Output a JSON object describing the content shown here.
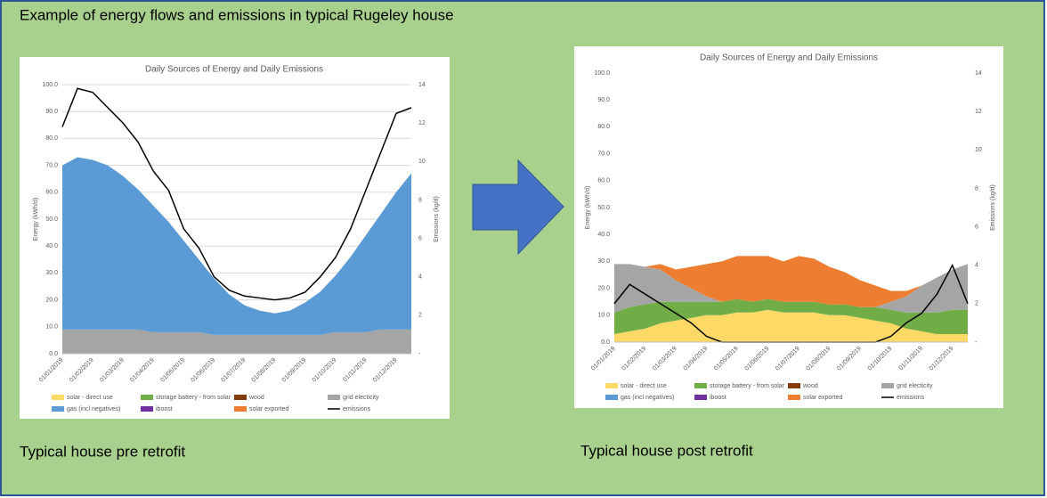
{
  "slide": {
    "title": "Example of energy flows and emissions in typical Rugeley house",
    "captions": [
      "Typical house pre retrofit",
      "Typical house post retrofit"
    ]
  },
  "chart_data": [
    {
      "type": "area",
      "title": "Daily Sources of Energy and Daily Emissions",
      "y_label": "Energy (kWh/d)",
      "y2_label": "Emissions (kg/d)",
      "x": [
        "01/01/2019",
        null,
        "01/02/2019",
        null,
        "01/03/2019",
        null,
        "01/04/2019",
        null,
        "01/05/2019",
        null,
        "01/06/2019",
        null,
        "01/07/2019",
        null,
        "01/08/2019",
        null,
        "01/09/2019",
        null,
        "01/10/2019",
        null,
        "01/11/2019",
        null,
        "01/12/2019",
        null
      ],
      "ylim": [
        0,
        100
      ],
      "yticks": [
        {
          "value": 0,
          "label": "0.0"
        },
        {
          "value": 10,
          "label": "10.0"
        },
        {
          "value": 20,
          "label": "20.0"
        },
        {
          "value": 30,
          "label": "30.0"
        },
        {
          "value": 40,
          "label": "40.0"
        },
        {
          "value": 50,
          "label": "50.0"
        },
        {
          "value": 60,
          "label": "60.0"
        },
        {
          "value": 70,
          "label": "70.0"
        },
        {
          "value": 80,
          "label": "80.0"
        },
        {
          "value": 90,
          "label": "90.0"
        },
        {
          "value": 100,
          "label": "100.0"
        }
      ],
      "y2lim": [
        0,
        14
      ],
      "y2ticks": [
        {
          "value": 0,
          "label": "-"
        },
        2,
        4,
        6,
        8,
        10,
        12,
        14
      ],
      "grid": true,
      "series": [
        {
          "name": "solar - direct use",
          "color": "#ffd966",
          "values": [
            0,
            0,
            0,
            0,
            0,
            0,
            0,
            0,
            0,
            0,
            0,
            0,
            0,
            0,
            0,
            0,
            0,
            0,
            0,
            0,
            0,
            0,
            0,
            0
          ]
        },
        {
          "name": "storage battery - from solar",
          "color": "#70ad47",
          "values": [
            0,
            0,
            0,
            0,
            0,
            0,
            0,
            0,
            0,
            0,
            0,
            0,
            0,
            0,
            0,
            0,
            0,
            0,
            0,
            0,
            0,
            0,
            0,
            0
          ]
        },
        {
          "name": "wood",
          "color": "#843c0c",
          "values": [
            0,
            0,
            0,
            0,
            0,
            0,
            0,
            0,
            0,
            0,
            0,
            0,
            0,
            0,
            0,
            0,
            0,
            0,
            0,
            0,
            0,
            0,
            0,
            0
          ]
        },
        {
          "name": "grid electicity",
          "color": "#a5a5a5",
          "values": [
            9,
            9,
            9,
            9,
            9,
            9,
            8,
            8,
            8,
            8,
            7,
            7,
            7,
            7,
            7,
            7,
            7,
            7,
            8,
            8,
            8,
            9,
            9,
            9
          ]
        },
        {
          "name": "gas (incl negatives)",
          "color": "#5b9bd5",
          "values": [
            61,
            64,
            63,
            61,
            57,
            52,
            47,
            41,
            34,
            27,
            21,
            15,
            11,
            9,
            8,
            9,
            12,
            16,
            21,
            28,
            36,
            43,
            51,
            58
          ]
        },
        {
          "name": "iboost",
          "color": "#7030a0",
          "values": [
            0,
            0,
            0,
            0,
            0,
            0,
            0,
            0,
            0,
            0,
            0,
            0,
            0,
            0,
            0,
            0,
            0,
            0,
            0,
            0,
            0,
            0,
            0,
            0
          ]
        },
        {
          "name": "solar exported",
          "color": "#ed7d31",
          "values": [
            0,
            0,
            0,
            0,
            0,
            0,
            0,
            0,
            0,
            0,
            0,
            0,
            0,
            0,
            0,
            0,
            0,
            0,
            0,
            0,
            0,
            0,
            0,
            0
          ]
        },
        {
          "name": "emissions",
          "color": "#000000",
          "axis": "y2",
          "values": [
            11.8,
            13.8,
            13.6,
            12.8,
            12,
            11,
            9.5,
            8.5,
            6.5,
            5.5,
            4,
            3.3,
            3,
            2.9,
            2.8,
            2.9,
            3.2,
            4,
            5,
            6.5,
            8.5,
            10.5,
            12.5,
            12.8
          ]
        }
      ]
    },
    {
      "type": "area",
      "title": "Daily Sources of Energy and Daily Emissions",
      "y_label": "Energy (kWh/d)",
      "y2_label": "Emissions (kg/d)",
      "x": [
        "01/01/2019",
        null,
        "01/02/2019",
        null,
        "01/03/2019",
        null,
        "01/04/2019",
        null,
        "01/05/2019",
        null,
        "01/06/2019",
        null,
        "01/07/2019",
        null,
        "01/08/2019",
        null,
        "01/09/2019",
        null,
        "01/10/2019",
        null,
        "01/11/2019",
        null,
        "01/12/2019",
        null
      ],
      "ylim": [
        0,
        100
      ],
      "yticks": [
        {
          "value": 0,
          "label": "0.0"
        },
        {
          "value": 10,
          "label": "10.0"
        },
        {
          "value": 20,
          "label": "20.0"
        },
        {
          "value": 30,
          "label": "30.0"
        },
        {
          "value": 40,
          "label": "40.0"
        },
        {
          "value": 50,
          "label": "50.0"
        },
        {
          "value": 60,
          "label": "60.0"
        },
        {
          "value": 70,
          "label": "70.0"
        },
        {
          "value": 80,
          "label": "80.0"
        },
        {
          "value": 90,
          "label": "90.0"
        },
        {
          "value": 100,
          "label": "100.0"
        }
      ],
      "y2lim": [
        0,
        14
      ],
      "y2ticks": [
        {
          "value": 0,
          "label": "-"
        },
        2,
        4,
        6,
        8,
        10,
        12,
        14
      ],
      "grid": false,
      "series": [
        {
          "name": "solar - direct use",
          "color": "#ffd966",
          "values": [
            3,
            4,
            5,
            7,
            8,
            9,
            10,
            10,
            11,
            11,
            12,
            11,
            11,
            11,
            10,
            10,
            9,
            8,
            7,
            5,
            4,
            3,
            3,
            3
          ]
        },
        {
          "name": "storage battery - from solar",
          "color": "#70ad47",
          "values": [
            8,
            9,
            9,
            8,
            7,
            6,
            5,
            5,
            5,
            4,
            4,
            4,
            4,
            4,
            4,
            4,
            4,
            5,
            5,
            6,
            7,
            8,
            9,
            9
          ]
        },
        {
          "name": "wood",
          "color": "#843c0c",
          "values": [
            0,
            0,
            0,
            0,
            0,
            0,
            0,
            0,
            0,
            0,
            0,
            0,
            0,
            0,
            0,
            0,
            0,
            0,
            0,
            0,
            0,
            0,
            0,
            0
          ]
        },
        {
          "name": "grid electicity",
          "color": "#a5a5a5",
          "values": [
            18,
            16,
            14,
            12,
            8,
            5,
            2,
            0,
            0,
            0,
            0,
            0,
            0,
            0,
            0,
            0,
            0,
            0,
            3,
            6,
            10,
            13,
            15,
            17
          ]
        },
        {
          "name": "gas (incl negatives)",
          "color": "#5b9bd5",
          "values": [
            0,
            0,
            0,
            0,
            0,
            0,
            0,
            0,
            0,
            0,
            0,
            0,
            0,
            0,
            0,
            0,
            0,
            0,
            0,
            0,
            0,
            0,
            0,
            0
          ]
        },
        {
          "name": "iboost",
          "color": "#7030a0",
          "values": [
            0,
            0,
            0,
            0,
            0,
            0,
            0,
            0,
            0,
            0,
            0,
            0,
            0,
            0,
            0,
            0,
            0,
            0,
            0,
            0,
            0,
            0,
            0,
            0
          ]
        },
        {
          "name": "solar exported",
          "color": "#ed7d31",
          "values": [
            0,
            0,
            0,
            2,
            4,
            8,
            12,
            15,
            16,
            17,
            16,
            15,
            17,
            16,
            14,
            12,
            10,
            8,
            4,
            2,
            0,
            0,
            0,
            0
          ]
        },
        {
          "name": "emissions",
          "color": "#000000",
          "axis": "y2",
          "values": [
            2,
            3,
            2.5,
            2,
            1.5,
            1,
            0.3,
            0,
            0,
            0,
            0,
            0,
            0,
            0,
            0,
            0,
            0,
            0,
            0.3,
            1,
            1.5,
            2.5,
            4,
            2
          ]
        }
      ]
    }
  ]
}
